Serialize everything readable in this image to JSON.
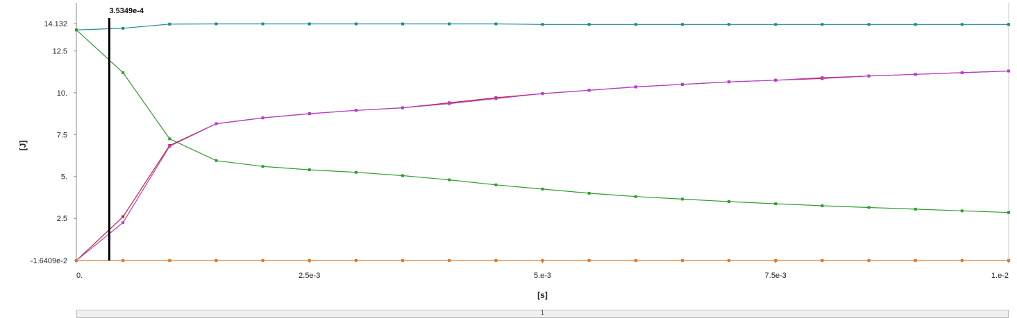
{
  "chart_data": {
    "type": "line",
    "xlabel": "[s]",
    "ylabel": "[J]",
    "xlim": [
      0,
      0.01
    ],
    "ylim": [
      -0.016409,
      14.132
    ],
    "x_ticks": [
      {
        "value": 0,
        "label": "0."
      },
      {
        "value": 0.0025,
        "label": "2.5e-3"
      },
      {
        "value": 0.005,
        "label": "5.e-3"
      },
      {
        "value": 0.0075,
        "label": "7.5e-3"
      },
      {
        "value": 0.01,
        "label": "1.e-2"
      }
    ],
    "y_ticks": [
      {
        "value": 14.132,
        "label": "14.132"
      },
      {
        "value": 12.5,
        "label": "12.5"
      },
      {
        "value": 10,
        "label": "10."
      },
      {
        "value": 7.5,
        "label": "7.5"
      },
      {
        "value": 5,
        "label": "5."
      },
      {
        "value": 2.5,
        "label": "2.5"
      },
      {
        "value": -0.016409,
        "label": "-1.6409e-2"
      }
    ],
    "grid": false,
    "marker_line": {
      "x": 0.00035349,
      "label": "3.5349e-4"
    },
    "x": [
      0,
      0.0005,
      0.001,
      0.0015,
      0.002,
      0.0025,
      0.003,
      0.0035,
      0.004,
      0.0045,
      0.005,
      0.0055,
      0.006,
      0.0065,
      0.007,
      0.0075,
      0.008,
      0.0085,
      0.009,
      0.0095,
      0.01
    ],
    "series": [
      {
        "color": "#1b8a94",
        "values": [
          13.75,
          13.85,
          14.1,
          14.11,
          14.11,
          14.11,
          14.11,
          14.11,
          14.11,
          14.11,
          14.08,
          14.08,
          14.08,
          14.08,
          14.08,
          14.08,
          14.08,
          14.08,
          14.08,
          14.08,
          14.08
        ]
      },
      {
        "color": "#2e9e2e",
        "values": [
          13.75,
          11.2,
          7.25,
          5.95,
          5.6,
          5.4,
          5.25,
          5.05,
          4.8,
          4.5,
          4.25,
          4.0,
          3.8,
          3.65,
          3.5,
          3.37,
          3.25,
          3.15,
          3.05,
          2.95,
          2.85
        ]
      },
      {
        "color": "#c4262e",
        "values": [
          -0.016,
          2.6,
          6.85,
          8.15,
          8.5,
          8.75,
          8.95,
          9.1,
          9.4,
          9.7,
          9.95,
          10.15,
          10.35,
          10.5,
          10.65,
          10.75,
          10.85,
          11.0,
          11.1,
          11.2,
          11.3
        ]
      },
      {
        "color": "#b23fd1",
        "values": [
          -0.016,
          2.25,
          6.8,
          8.15,
          8.5,
          8.75,
          8.95,
          9.1,
          9.35,
          9.65,
          9.95,
          10.15,
          10.35,
          10.5,
          10.65,
          10.75,
          10.9,
          11.0,
          11.1,
          11.2,
          11.3
        ]
      },
      {
        "color": "#e07a2a",
        "values": [
          -0.016,
          -0.016,
          -0.016,
          -0.016,
          -0.016,
          -0.016,
          -0.016,
          -0.016,
          -0.016,
          -0.016,
          -0.016,
          -0.016,
          -0.016,
          -0.016,
          -0.016,
          -0.016,
          -0.016,
          -0.016,
          -0.016,
          -0.016,
          -0.016
        ]
      }
    ]
  },
  "tab_strip": {
    "label": "1"
  }
}
